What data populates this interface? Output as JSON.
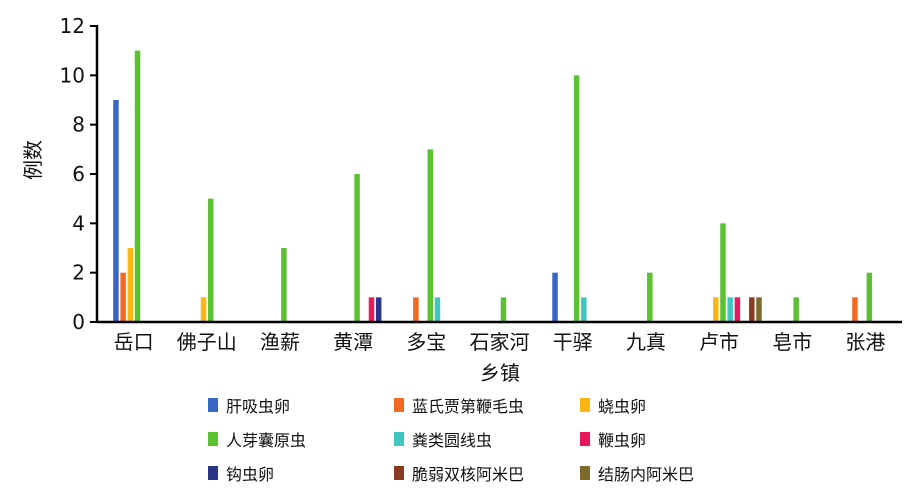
{
  "chart_data": {
    "type": "bar",
    "title": "",
    "xlabel": "乡镇",
    "ylabel": "例数",
    "ylim": [
      0,
      12
    ],
    "yticks": [
      "0",
      "2",
      "4",
      "6",
      "8",
      "10",
      "12"
    ],
    "grid": false,
    "legend_position": "bottom",
    "categories": [
      "岳口",
      "佛子山",
      "渔薪",
      "黄潭",
      "多宝",
      "石家河",
      "干驿",
      "九真",
      "卢市",
      "皂市",
      "张港"
    ],
    "series": [
      {
        "name": "肝吸虫卵",
        "color": "#3a66c4",
        "values": [
          9,
          0,
          0,
          0,
          0,
          0,
          2,
          0,
          0,
          0,
          0
        ]
      },
      {
        "name": "蓝氏贾第鞭毛虫",
        "color": "#f26a22",
        "values": [
          2,
          0,
          0,
          0,
          1,
          0,
          0,
          0,
          0,
          0,
          1
        ]
      },
      {
        "name": "蛲虫卵",
        "color": "#fbb614",
        "values": [
          3,
          1,
          0,
          0,
          0,
          0,
          0,
          0,
          1,
          0,
          0
        ]
      },
      {
        "name": "人芽囊原虫",
        "color": "#5cc132",
        "values": [
          11,
          5,
          3,
          6,
          7,
          1,
          10,
          2,
          4,
          1,
          2
        ]
      },
      {
        "name": "粪类圆线虫",
        "color": "#3ec6c0",
        "values": [
          0,
          0,
          0,
          0,
          1,
          0,
          1,
          0,
          1,
          0,
          0
        ]
      },
      {
        "name": "鞭虫卵",
        "color": "#e8195a",
        "values": [
          0,
          0,
          0,
          1,
          0,
          0,
          0,
          0,
          1,
          0,
          0
        ]
      },
      {
        "name": "钩虫卵",
        "color": "#2a3585",
        "values": [
          0,
          0,
          0,
          1,
          0,
          0,
          0,
          0,
          0,
          0,
          0
        ]
      },
      {
        "name": "脆弱双核阿米巴",
        "color": "#8b3a22",
        "values": [
          0,
          0,
          0,
          0,
          0,
          0,
          0,
          0,
          1,
          0,
          0
        ]
      },
      {
        "name": "结肠内阿米巴",
        "color": "#7d6a2a",
        "values": [
          0,
          0,
          0,
          0,
          0,
          0,
          0,
          0,
          1,
          0,
          0
        ]
      }
    ]
  }
}
